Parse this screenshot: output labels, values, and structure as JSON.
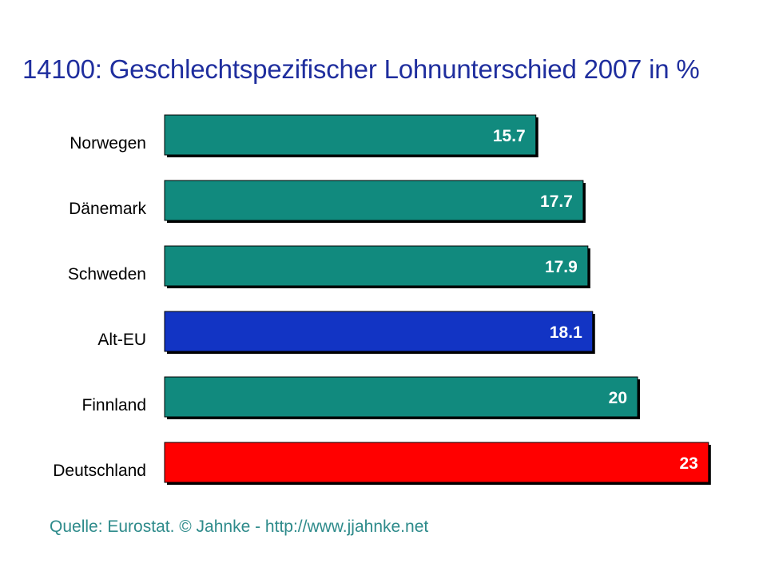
{
  "chart_data": {
    "type": "bar",
    "orientation": "horizontal",
    "title": "14100: Geschlechtspezifischer Lohnunterschied 2007 in %",
    "categories": [
      "Norwegen",
      "Dänemark",
      "Schweden",
      "Alt-EU",
      "Finnland",
      "Deutschland"
    ],
    "values": [
      15.7,
      17.7,
      17.9,
      18.1,
      20,
      23
    ],
    "value_labels": [
      "15.7",
      "17.7",
      "17.9",
      "18.1",
      "20",
      "23"
    ],
    "bar_colors": [
      "#118a7e",
      "#118a7e",
      "#118a7e",
      "#1234c4",
      "#118a7e",
      "#ff0000"
    ],
    "xlim": [
      0,
      23
    ],
    "grid": false,
    "legend": "none",
    "data_labels": "inside-end"
  },
  "source": "Quelle: Eurostat. © Jahnke - http://www.jjahnke.net"
}
